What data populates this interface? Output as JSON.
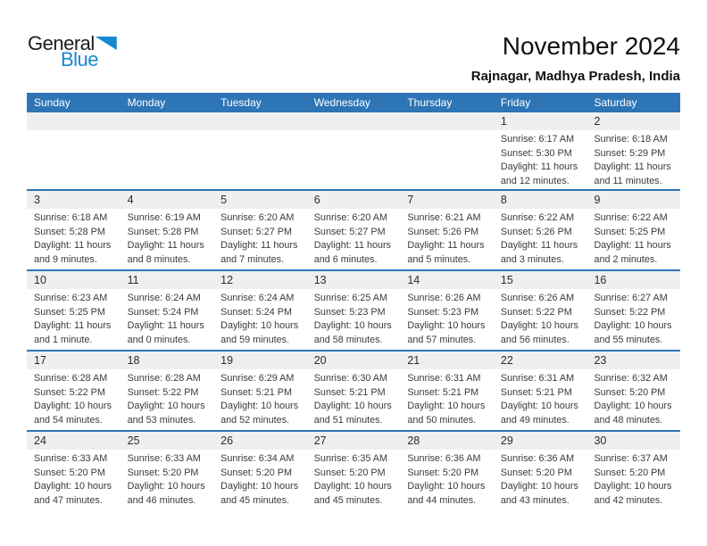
{
  "logo": {
    "word1": "General",
    "word2": "Blue"
  },
  "header": {
    "title": "November 2024",
    "subtitle": "Rajnagar, Madhya Pradesh, India"
  },
  "colors": {
    "header_blue": "#2e75b6",
    "logo_blue": "#1789ce",
    "strip_gray": "#efefef"
  },
  "calendar": {
    "day_headers": [
      "Sunday",
      "Monday",
      "Tuesday",
      "Wednesday",
      "Thursday",
      "Friday",
      "Saturday"
    ],
    "weeks": [
      [
        null,
        null,
        null,
        null,
        null,
        {
          "day": "1",
          "sunrise": "Sunrise: 6:17 AM",
          "sunset": "Sunset: 5:30 PM",
          "daylight": "Daylight: 11 hours and 12 minutes."
        },
        {
          "day": "2",
          "sunrise": "Sunrise: 6:18 AM",
          "sunset": "Sunset: 5:29 PM",
          "daylight": "Daylight: 11 hours and 11 minutes."
        }
      ],
      [
        {
          "day": "3",
          "sunrise": "Sunrise: 6:18 AM",
          "sunset": "Sunset: 5:28 PM",
          "daylight": "Daylight: 11 hours and 9 minutes."
        },
        {
          "day": "4",
          "sunrise": "Sunrise: 6:19 AM",
          "sunset": "Sunset: 5:28 PM",
          "daylight": "Daylight: 11 hours and 8 minutes."
        },
        {
          "day": "5",
          "sunrise": "Sunrise: 6:20 AM",
          "sunset": "Sunset: 5:27 PM",
          "daylight": "Daylight: 11 hours and 7 minutes."
        },
        {
          "day": "6",
          "sunrise": "Sunrise: 6:20 AM",
          "sunset": "Sunset: 5:27 PM",
          "daylight": "Daylight: 11 hours and 6 minutes."
        },
        {
          "day": "7",
          "sunrise": "Sunrise: 6:21 AM",
          "sunset": "Sunset: 5:26 PM",
          "daylight": "Daylight: 11 hours and 5 minutes."
        },
        {
          "day": "8",
          "sunrise": "Sunrise: 6:22 AM",
          "sunset": "Sunset: 5:26 PM",
          "daylight": "Daylight: 11 hours and 3 minutes."
        },
        {
          "day": "9",
          "sunrise": "Sunrise: 6:22 AM",
          "sunset": "Sunset: 5:25 PM",
          "daylight": "Daylight: 11 hours and 2 minutes."
        }
      ],
      [
        {
          "day": "10",
          "sunrise": "Sunrise: 6:23 AM",
          "sunset": "Sunset: 5:25 PM",
          "daylight": "Daylight: 11 hours and 1 minute."
        },
        {
          "day": "11",
          "sunrise": "Sunrise: 6:24 AM",
          "sunset": "Sunset: 5:24 PM",
          "daylight": "Daylight: 11 hours and 0 minutes."
        },
        {
          "day": "12",
          "sunrise": "Sunrise: 6:24 AM",
          "sunset": "Sunset: 5:24 PM",
          "daylight": "Daylight: 10 hours and 59 minutes."
        },
        {
          "day": "13",
          "sunrise": "Sunrise: 6:25 AM",
          "sunset": "Sunset: 5:23 PM",
          "daylight": "Daylight: 10 hours and 58 minutes."
        },
        {
          "day": "14",
          "sunrise": "Sunrise: 6:26 AM",
          "sunset": "Sunset: 5:23 PM",
          "daylight": "Daylight: 10 hours and 57 minutes."
        },
        {
          "day": "15",
          "sunrise": "Sunrise: 6:26 AM",
          "sunset": "Sunset: 5:22 PM",
          "daylight": "Daylight: 10 hours and 56 minutes."
        },
        {
          "day": "16",
          "sunrise": "Sunrise: 6:27 AM",
          "sunset": "Sunset: 5:22 PM",
          "daylight": "Daylight: 10 hours and 55 minutes."
        }
      ],
      [
        {
          "day": "17",
          "sunrise": "Sunrise: 6:28 AM",
          "sunset": "Sunset: 5:22 PM",
          "daylight": "Daylight: 10 hours and 54 minutes."
        },
        {
          "day": "18",
          "sunrise": "Sunrise: 6:28 AM",
          "sunset": "Sunset: 5:22 PM",
          "daylight": "Daylight: 10 hours and 53 minutes."
        },
        {
          "day": "19",
          "sunrise": "Sunrise: 6:29 AM",
          "sunset": "Sunset: 5:21 PM",
          "daylight": "Daylight: 10 hours and 52 minutes."
        },
        {
          "day": "20",
          "sunrise": "Sunrise: 6:30 AM",
          "sunset": "Sunset: 5:21 PM",
          "daylight": "Daylight: 10 hours and 51 minutes."
        },
        {
          "day": "21",
          "sunrise": "Sunrise: 6:31 AM",
          "sunset": "Sunset: 5:21 PM",
          "daylight": "Daylight: 10 hours and 50 minutes."
        },
        {
          "day": "22",
          "sunrise": "Sunrise: 6:31 AM",
          "sunset": "Sunset: 5:21 PM",
          "daylight": "Daylight: 10 hours and 49 minutes."
        },
        {
          "day": "23",
          "sunrise": "Sunrise: 6:32 AM",
          "sunset": "Sunset: 5:20 PM",
          "daylight": "Daylight: 10 hours and 48 minutes."
        }
      ],
      [
        {
          "day": "24",
          "sunrise": "Sunrise: 6:33 AM",
          "sunset": "Sunset: 5:20 PM",
          "daylight": "Daylight: 10 hours and 47 minutes."
        },
        {
          "day": "25",
          "sunrise": "Sunrise: 6:33 AM",
          "sunset": "Sunset: 5:20 PM",
          "daylight": "Daylight: 10 hours and 46 minutes."
        },
        {
          "day": "26",
          "sunrise": "Sunrise: 6:34 AM",
          "sunset": "Sunset: 5:20 PM",
          "daylight": "Daylight: 10 hours and 45 minutes."
        },
        {
          "day": "27",
          "sunrise": "Sunrise: 6:35 AM",
          "sunset": "Sunset: 5:20 PM",
          "daylight": "Daylight: 10 hours and 45 minutes."
        },
        {
          "day": "28",
          "sunrise": "Sunrise: 6:36 AM",
          "sunset": "Sunset: 5:20 PM",
          "daylight": "Daylight: 10 hours and 44 minutes."
        },
        {
          "day": "29",
          "sunrise": "Sunrise: 6:36 AM",
          "sunset": "Sunset: 5:20 PM",
          "daylight": "Daylight: 10 hours and 43 minutes."
        },
        {
          "day": "30",
          "sunrise": "Sunrise: 6:37 AM",
          "sunset": "Sunset: 5:20 PM",
          "daylight": "Daylight: 10 hours and 42 minutes."
        }
      ]
    ]
  }
}
